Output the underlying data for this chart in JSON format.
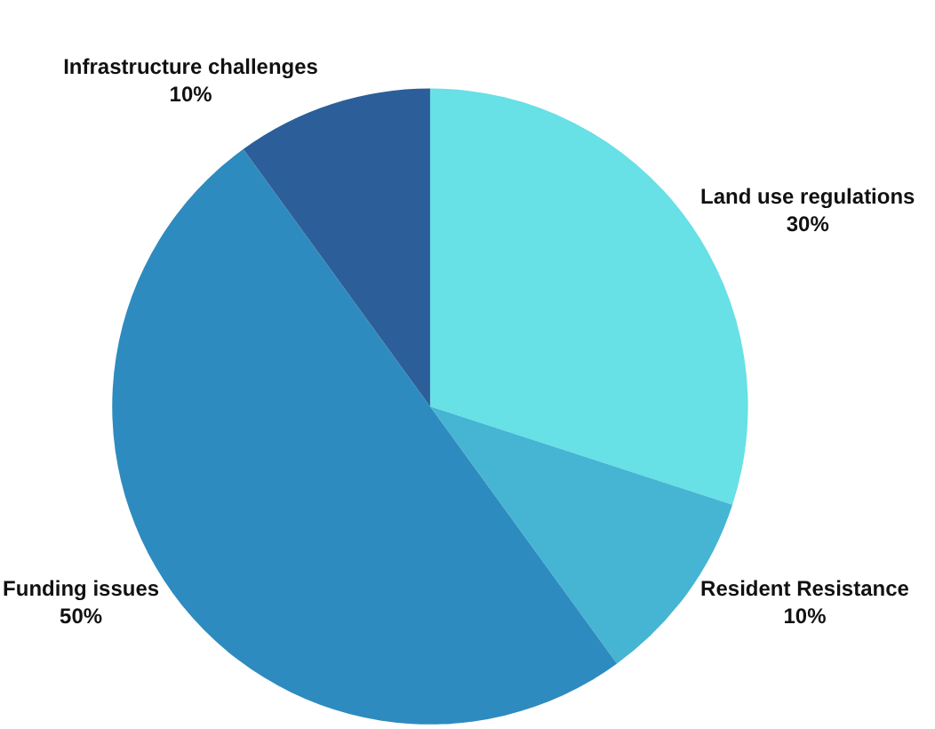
{
  "chart_data": {
    "type": "pie",
    "categories": [
      "Land use regulations",
      "Resident Resistance",
      "Funding issues",
      "Infrastructure challenges"
    ],
    "values": [
      30,
      10,
      50,
      10
    ],
    "value_labels": [
      "30%",
      "10%",
      "50%",
      "10%"
    ],
    "colors": [
      "#67e0e6",
      "#45b5d3",
      "#2e8bbf",
      "#2c5f99"
    ],
    "legend": false
  }
}
